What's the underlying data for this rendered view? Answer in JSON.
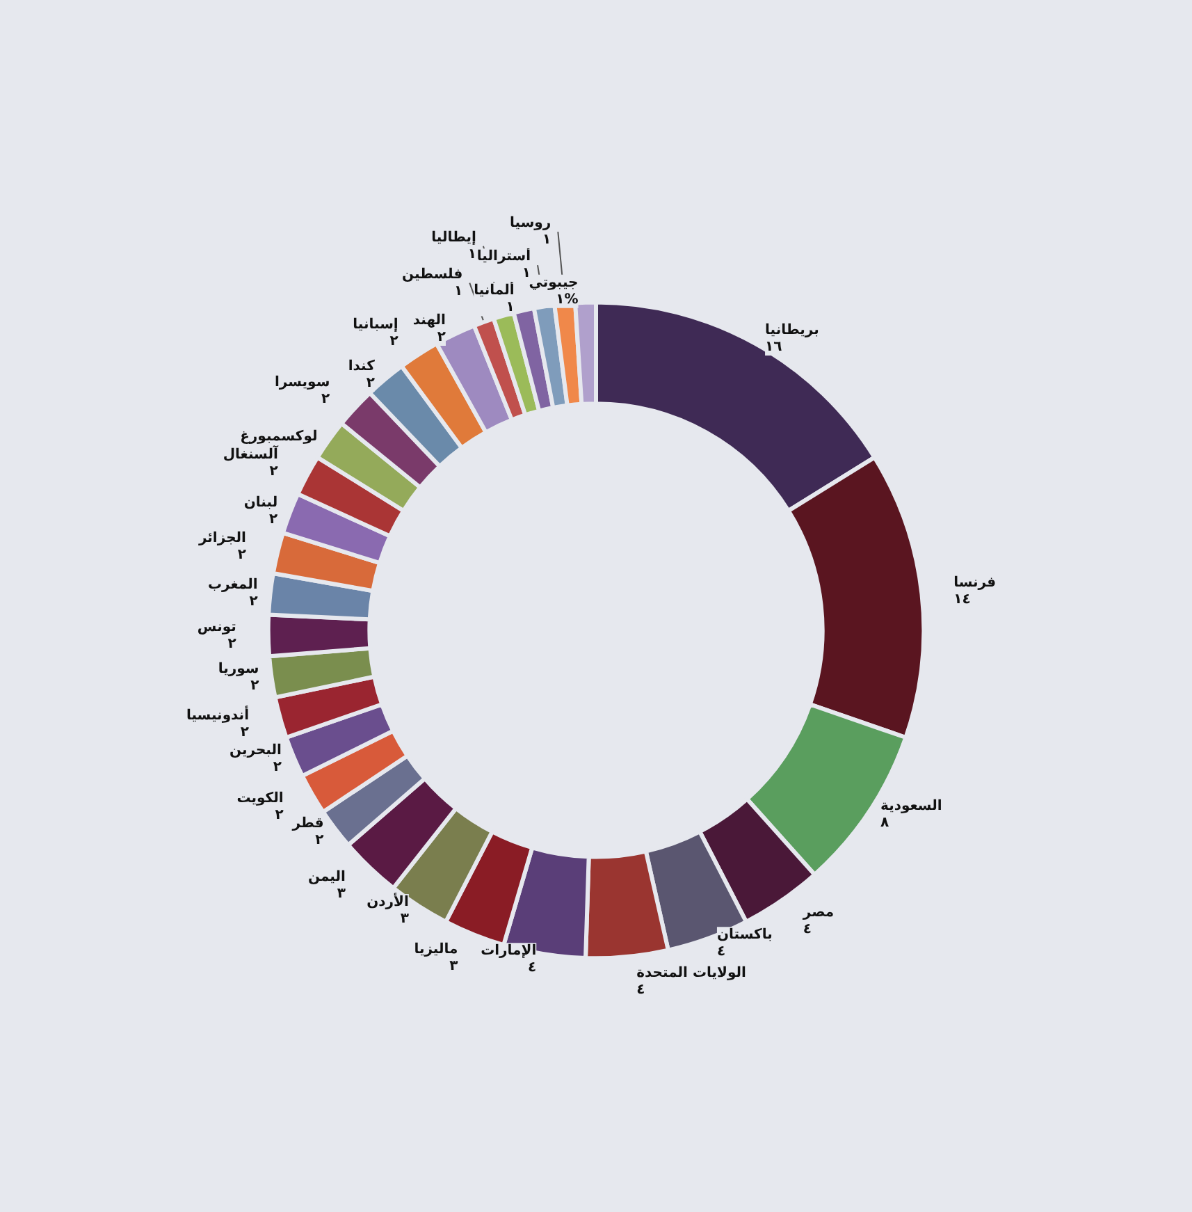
{
  "chart_data": {
    "type": "donut",
    "categories": [
      "بريطانيا",
      "فرنسا",
      "السعودية",
      "مصر",
      "باكستان",
      "الولايات المتحدة",
      "الإمارات",
      "ماليزيا",
      "الأردن",
      "اليمن",
      "قطر",
      "الكويت",
      "البحرين",
      "أندونيسيا",
      "سوريا",
      "تونس",
      "المغرب",
      "الجزائر",
      "لبنان",
      "آلسنغال",
      "لوكسمبورغ",
      "سويسرا",
      "كندا",
      "إسبانيا",
      "الهند",
      "فلسطين",
      "إيطاليا",
      "ألمانيا",
      "أستراليا",
      "روسيا",
      "جيبوتي"
    ],
    "values": [
      16,
      14,
      8,
      4,
      4,
      4,
      4,
      3,
      3,
      3,
      2,
      2,
      2,
      2,
      2,
      2,
      2,
      2,
      2,
      2,
      2,
      2,
      2,
      2,
      2,
      1,
      1,
      1,
      1,
      1,
      1
    ],
    "value_labels": [
      "١٦",
      "١٤",
      "٨",
      "٤",
      "٤",
      "٤",
      "٤",
      "٣",
      "٣",
      "٣",
      "٢",
      "٢",
      "٢",
      "٢",
      "٢",
      "٢",
      "٢",
      "٢",
      "٢",
      "٢",
      null,
      "٢",
      "٢",
      "٢",
      "٢",
      "١",
      "١",
      "١",
      "١",
      "١",
      "١%"
    ],
    "colors": [
      "#3f2a55",
      "#5a1520",
      "#5a9e5e",
      "#4a1838",
      "#5a5670",
      "#9a3530",
      "#5a3e78",
      "#8a1c25",
      "#7a7e4e",
      "#5a1a44",
      "#6a7090",
      "#d85a3a",
      "#6a4e8e",
      "#9a2530",
      "#7a8e4e",
      "#5e2050",
      "#6a84a8",
      "#d86a3a",
      "#8a6ab0",
      "#aa3535",
      "#94aa5a",
      "#7a3a6a",
      "#6a8aaa",
      "#e07a3a",
      "#9e8ac0",
      "#c0504d",
      "#9bbb59",
      "#8064a2",
      "#7f9cbb",
      "#f0884a",
      "#b0a0cc"
    ]
  }
}
